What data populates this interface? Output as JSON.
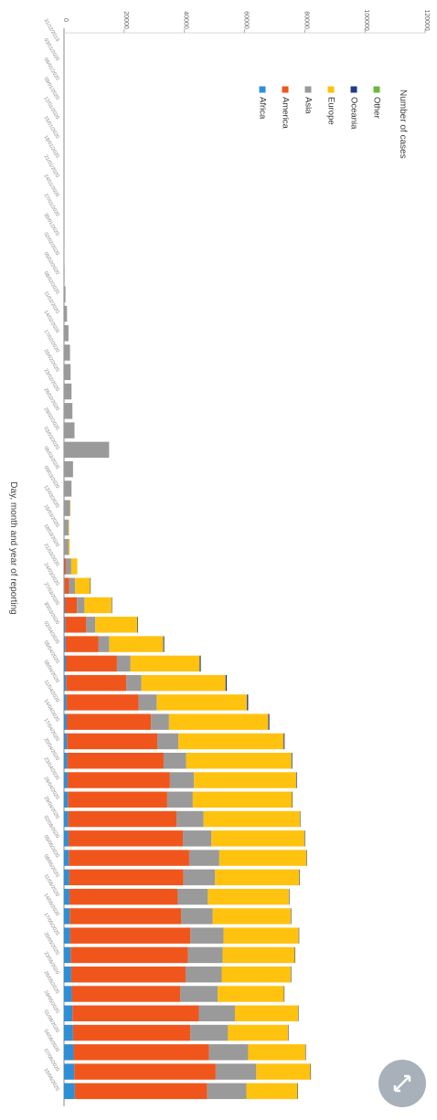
{
  "chart_data": {
    "type": "bar",
    "stacked": true,
    "orientation": "rotated-90",
    "xlabel": "Day, month and year of reporting",
    "ylabel": "Number of cases",
    "ylim": [
      0,
      120000
    ],
    "yticks": [
      "0",
      "20000",
      "40000",
      "60000",
      "80000",
      "100000",
      "120000"
    ],
    "legend_placement": "top-left (rotated)",
    "categories": [
      "31/12/2019",
      "03/01/2020",
      "06/01/2020",
      "09/01/2020",
      "12/01/2020",
      "15/01/2020",
      "18/01/2020",
      "21/01/2020",
      "24/01/2020",
      "27/01/2020",
      "30/01/2020",
      "02/02/2020",
      "05/02/2020",
      "08/02/2020",
      "11/02/2020",
      "14/02/2020",
      "17/02/2020",
      "20/02/2020",
      "23/02/2020",
      "26/02/2020",
      "29/02/2020",
      "03/03/2020",
      "06/03/2020",
      "09/03/2020",
      "12/03/2020",
      "15/03/2020",
      "18/03/2020",
      "21/03/2020",
      "24/03/2020",
      "27/03/2020",
      "30/03/2020",
      "02/04/2020",
      "05/04/2020",
      "08/04/2020",
      "11/04/2020",
      "14/04/2020",
      "17/04/2020",
      "20/04/2020",
      "23/04/2020",
      "26/04/2020",
      "29/04/2020",
      "02/05/2020",
      "05/05/2020",
      "08/05/2020",
      "11/05/2020",
      "14/05/2020",
      "17/05/2020",
      "20/05/2020",
      "23/05/2020",
      "26/05/2020",
      "29/05/2020",
      "01/06/2020",
      "04/06/2020",
      "07/06/2020",
      "10/06/2020"
    ],
    "series": [
      {
        "name": "Africa",
        "color": "#2f8fd6",
        "values": [
          0,
          0,
          0,
          0,
          0,
          0,
          0,
          0,
          0,
          0,
          0,
          0,
          0,
          0,
          0,
          0,
          0,
          0,
          0,
          0,
          0,
          0,
          0,
          0,
          0,
          0,
          0,
          100,
          200,
          300,
          400,
          500,
          600,
          700,
          800,
          900,
          1000,
          1100,
          1200,
          1300,
          1400,
          1500,
          1600,
          1700,
          1800,
          1900,
          2000,
          2200,
          2400,
          2600,
          2800,
          3000,
          3200,
          3400,
          3600
        ]
      },
      {
        "name": "America",
        "color": "#f0561c",
        "values": [
          0,
          0,
          0,
          0,
          0,
          0,
          0,
          0,
          0,
          0,
          0,
          0,
          0,
          0,
          0,
          0,
          0,
          0,
          0,
          0,
          0,
          0,
          0,
          0,
          0,
          0,
          0,
          500,
          1500,
          4000,
          7000,
          11000,
          17000,
          20000,
          24000,
          28000,
          30000,
          32000,
          34000,
          33000,
          36000,
          38000,
          40000,
          38000,
          36000,
          37000,
          40000,
          39000,
          38000,
          36000,
          42000,
          39000,
          45000,
          47000,
          44000
        ]
      },
      {
        "name": "Asia",
        "color": "#9a9a9a",
        "values": [
          0,
          0,
          0,
          0,
          0,
          0,
          0,
          0,
          0,
          0,
          0,
          100,
          200,
          500,
          1000,
          1500,
          2000,
          2200,
          2500,
          2800,
          3500,
          15000,
          3000,
          2500,
          2000,
          1500,
          1500,
          1800,
          2000,
          2500,
          3000,
          3500,
          4500,
          5000,
          6000,
          6000,
          7000,
          7500,
          8000,
          8500,
          9000,
          9500,
          10000,
          10500,
          10000,
          10500,
          11000,
          11500,
          12000,
          12500,
          12000,
          12500,
          13000,
          13500,
          13000
        ]
      },
      {
        "name": "Europe",
        "color": "#ffc20e",
        "values": [
          0,
          0,
          0,
          0,
          0,
          0,
          0,
          0,
          0,
          0,
          0,
          0,
          0,
          0,
          0,
          0,
          0,
          0,
          0,
          0,
          0,
          0,
          0,
          0,
          100,
          200,
          400,
          2000,
          5000,
          9000,
          14000,
          18000,
          23000,
          28000,
          30000,
          33000,
          35000,
          35000,
          34000,
          33000,
          32000,
          31000,
          29000,
          28000,
          27000,
          26000,
          25000,
          24000,
          23000,
          22000,
          21000,
          20000,
          19000,
          18000,
          17000
        ]
      },
      {
        "name": "Oceania",
        "color": "#1f3c88",
        "values": [
          0,
          0,
          0,
          0,
          0,
          0,
          0,
          0,
          0,
          0,
          0,
          0,
          0,
          0,
          0,
          0,
          0,
          0,
          0,
          0,
          0,
          0,
          0,
          0,
          0,
          0,
          0,
          0,
          50,
          100,
          200,
          300,
          350,
          400,
          400,
          350,
          300,
          250,
          200,
          150,
          100,
          80,
          60,
          50,
          40,
          30,
          25,
          20,
          20,
          15,
          15,
          10,
          10,
          10,
          10
        ]
      },
      {
        "name": "Other",
        "color": "#6bb83b",
        "values": [
          0,
          0,
          0,
          0,
          0,
          0,
          0,
          0,
          0,
          0,
          0,
          0,
          0,
          0,
          0,
          0,
          0,
          0,
          0,
          0,
          0,
          0,
          0,
          0,
          0,
          0,
          0,
          0,
          0,
          0,
          0,
          0,
          0,
          0,
          0,
          0,
          0,
          0,
          0,
          0,
          0,
          0,
          0,
          0,
          0,
          0,
          0,
          0,
          0,
          0,
          0,
          0,
          0,
          0,
          0
        ]
      }
    ],
    "legend_order": [
      "Other",
      "Oceania",
      "Europe",
      "Asia",
      "America",
      "Africa"
    ]
  },
  "zoom_icon": "expand-arrows-icon"
}
